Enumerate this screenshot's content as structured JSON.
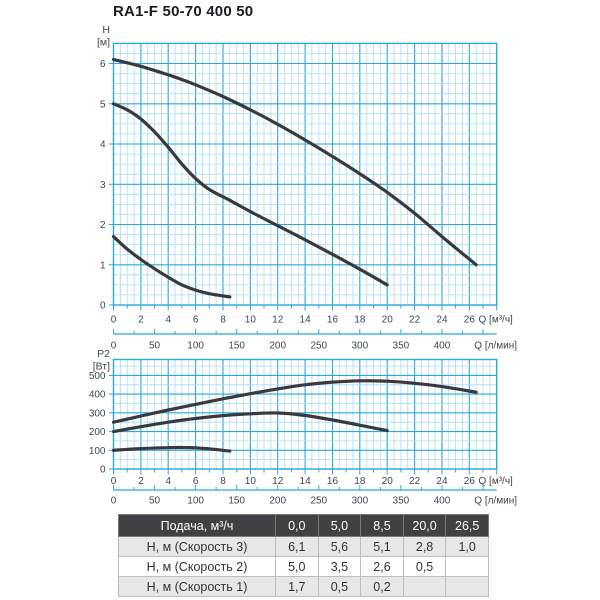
{
  "title": "RA1-F 50-70 400 50",
  "colors": {
    "grid_major": "#2aa7e0",
    "grid_minor": "#a9dcf4",
    "curve": "#3a3a3c",
    "axis_text": "#3d4651",
    "title_text": "#1b1b22",
    "table_header_bg": "#414144",
    "table_header_text": "#ffffff",
    "table_row_alt_bg": "#e7e7e7"
  },
  "chart_data": [
    {
      "type": "line",
      "name": "H-Q",
      "y_name": "H",
      "y_unit": "[м]",
      "x_primary": {
        "label": "Q [м³/ч]",
        "ticks": [
          0,
          2,
          4,
          6,
          8,
          10,
          12,
          14,
          16,
          18,
          20,
          22,
          24,
          26
        ],
        "min": 0,
        "max": 28,
        "grid_step": 0.5,
        "tick_step": 1,
        "major_step": 2
      },
      "x_secondary": {
        "label": "Q [л/мин]",
        "ticks": [
          0,
          50,
          100,
          150,
          200,
          250,
          300,
          350,
          400
        ],
        "minor_step": 25,
        "lmin_per_m3h": 16.667
      },
      "y_axis": {
        "ticks": [
          0,
          1,
          2,
          3,
          4,
          5,
          6
        ],
        "min": 0,
        "max": 6.5,
        "minor_step": 0.25,
        "major_step": 1
      },
      "grid": "on",
      "series": [
        {
          "name": "Скорость 3",
          "points": [
            [
              0,
              6.1
            ],
            [
              2,
              5.93
            ],
            [
              4,
              5.72
            ],
            [
              5,
              5.6
            ],
            [
              6,
              5.47
            ],
            [
              8,
              5.18
            ],
            [
              10,
              4.85
            ],
            [
              12,
              4.49
            ],
            [
              14,
              4.1
            ],
            [
              16,
              3.69
            ],
            [
              18,
              3.26
            ],
            [
              20,
              2.8
            ],
            [
              22,
              2.28
            ],
            [
              24,
              1.7
            ],
            [
              26.5,
              1.0
            ]
          ]
        },
        {
          "name": "Скорость 2",
          "points": [
            [
              0,
              5.0
            ],
            [
              1,
              4.85
            ],
            [
              2,
              4.62
            ],
            [
              3,
              4.3
            ],
            [
              4,
              3.92
            ],
            [
              5,
              3.5
            ],
            [
              6,
              3.14
            ],
            [
              7,
              2.87
            ],
            [
              8.5,
              2.6
            ],
            [
              10,
              2.32
            ],
            [
              12,
              1.97
            ],
            [
              14,
              1.62
            ],
            [
              16,
              1.26
            ],
            [
              18,
              0.89
            ],
            [
              20,
              0.5
            ]
          ]
        },
        {
          "name": "Скорость 1",
          "points": [
            [
              0,
              1.7
            ],
            [
              1,
              1.39
            ],
            [
              2,
              1.13
            ],
            [
              3,
              0.9
            ],
            [
              4,
              0.69
            ],
            [
              5,
              0.5
            ],
            [
              6,
              0.37
            ],
            [
              7,
              0.28
            ],
            [
              8.5,
              0.2
            ]
          ]
        }
      ]
    },
    {
      "type": "line",
      "name": "P2-Q",
      "y_name": "P2",
      "y_unit": "[Вт]",
      "x_primary": {
        "label": "Q [м³/ч]",
        "ticks": [
          0,
          2,
          4,
          6,
          8,
          10,
          12,
          14,
          16,
          18,
          20,
          22,
          24,
          26
        ],
        "min": 0,
        "max": 28,
        "grid_step": 0.5,
        "tick_step": 1,
        "major_step": 2
      },
      "x_secondary": {
        "label": "Q [л/мин]",
        "ticks": [
          0,
          50,
          100,
          150,
          200,
          250,
          300,
          350,
          400
        ],
        "minor_step": 25,
        "lmin_per_m3h": 16.667
      },
      "y_axis": {
        "ticks": [
          0,
          100,
          200,
          300,
          400,
          500
        ],
        "min": 0,
        "max": 585,
        "minor_step": 50,
        "major_step": 100
      },
      "grid": "on",
      "series": [
        {
          "name": "Скорость 3",
          "points": [
            [
              0,
              250
            ],
            [
              2,
              283
            ],
            [
              4,
              315
            ],
            [
              6,
              345
            ],
            [
              8,
              375
            ],
            [
              10,
              402
            ],
            [
              12,
              428
            ],
            [
              14,
              450
            ],
            [
              16,
              464
            ],
            [
              18,
              471
            ],
            [
              20,
              469
            ],
            [
              22,
              458
            ],
            [
              24,
              440
            ],
            [
              26.5,
              410
            ]
          ]
        },
        {
          "name": "Скорость 2",
          "points": [
            [
              0,
              200
            ],
            [
              2,
              226
            ],
            [
              4,
              250
            ],
            [
              6,
              270
            ],
            [
              8,
              285
            ],
            [
              10,
              295
            ],
            [
              12,
              299
            ],
            [
              14,
              286
            ],
            [
              16,
              262
            ],
            [
              18,
              234
            ],
            [
              20,
              205
            ]
          ]
        },
        {
          "name": "Скорость 1",
          "points": [
            [
              0,
              100
            ],
            [
              2,
              109
            ],
            [
              4,
              114
            ],
            [
              5,
              115
            ],
            [
              6,
              113
            ],
            [
              7,
              108
            ],
            [
              8.5,
              96
            ]
          ]
        }
      ]
    }
  ],
  "table": {
    "header": [
      "Подача, м³/ч",
      "0,0",
      "5,0",
      "8,5",
      "20,0",
      "26,5"
    ],
    "rows": [
      {
        "label": "Н, м (Скорость 3)",
        "values": [
          "6,1",
          "5,6",
          "5,1",
          "2,8",
          "1,0"
        ]
      },
      {
        "label": "Н, м (Скорость 2)",
        "values": [
          "5,0",
          "3,5",
          "2,6",
          "0,5",
          ""
        ]
      },
      {
        "label": "Н, м (Скорость 1)",
        "values": [
          "1,7",
          "0,5",
          "0,2",
          "",
          ""
        ]
      }
    ]
  }
}
